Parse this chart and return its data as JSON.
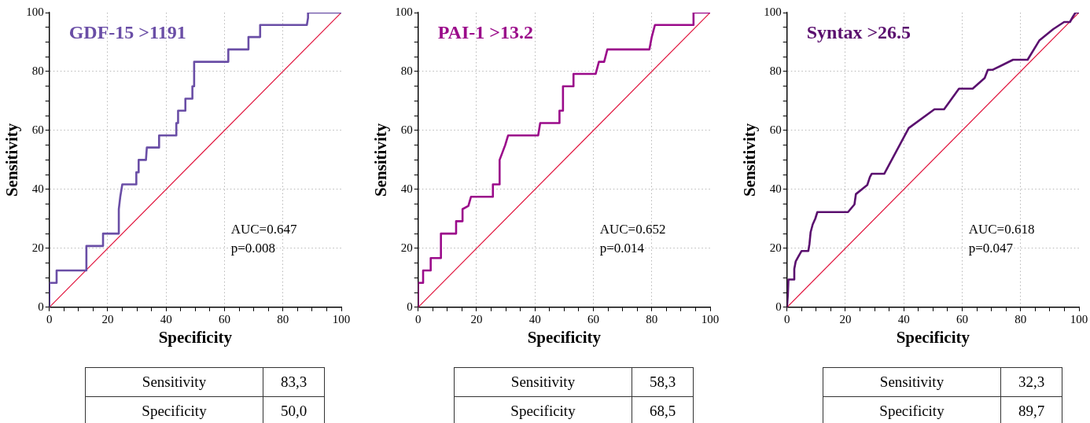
{
  "chart_data": [
    {
      "type": "line",
      "title": "GDF-15 >1191",
      "xlabel": "Specificity",
      "ylabel": "Sensitivity",
      "xlim": [
        0,
        100
      ],
      "ylim": [
        0,
        100
      ],
      "xticks": [
        0,
        {
          "value": 5,
          "label": null
        },
        {
          "value": 10,
          "label": null
        },
        {
          "value": 15,
          "label": null
        },
        20,
        {
          "value": 25,
          "label": null
        },
        {
          "value": 30,
          "label": null
        },
        {
          "value": 35,
          "label": null
        },
        40,
        {
          "value": 45,
          "label": null
        },
        {
          "value": 50,
          "label": null
        },
        {
          "value": 55,
          "label": null
        },
        60,
        {
          "value": 65,
          "label": null
        },
        {
          "value": 70,
          "label": null
        },
        {
          "value": 75,
          "label": null
        },
        80,
        {
          "value": 85,
          "label": null
        },
        {
          "value": 90,
          "label": null
        },
        {
          "value": 95,
          "label": null
        },
        100
      ],
      "yticks": [
        0,
        {
          "value": 5,
          "label": null
        },
        {
          "value": 10,
          "label": null
        },
        {
          "value": 15,
          "label": null
        },
        20,
        {
          "value": 25,
          "label": null
        },
        {
          "value": 30,
          "label": null
        },
        {
          "value": 35,
          "label": null
        },
        40,
        {
          "value": 45,
          "label": null
        },
        {
          "value": 50,
          "label": null
        },
        {
          "value": 55,
          "label": null
        },
        60,
        {
          "value": 65,
          "label": null
        },
        {
          "value": 70,
          "label": null
        },
        {
          "value": 75,
          "label": null
        },
        80,
        {
          "value": 85,
          "label": null
        },
        {
          "value": 90,
          "label": null
        },
        {
          "value": 95,
          "label": null
        },
        100
      ],
      "grid": true,
      "marker": "none",
      "series": [
        {
          "color": "#6a4ea6",
          "x": [
            0,
            0,
            2.5,
            2.5,
            12.7,
            12.7,
            18.4,
            18.4,
            23.8,
            23.8,
            24.3,
            25.0,
            29.8,
            29.8,
            30.6,
            30.6,
            33.1,
            33.4,
            37.6,
            37.6,
            43.5,
            43.5,
            44.1,
            44.1,
            46.6,
            46.6,
            49.0,
            49.0,
            49.6,
            49.6,
            61.3,
            61.3,
            68.2,
            68.2,
            72.2,
            72.2,
            88.2,
            88.6,
            88.6,
            100
          ],
          "values": [
            0,
            8.3,
            8.3,
            12.5,
            12.5,
            20.8,
            20.8,
            25.0,
            25.0,
            33.3,
            37.5,
            41.7,
            41.7,
            45.8,
            45.8,
            50.0,
            50.0,
            54.2,
            54.2,
            58.3,
            58.3,
            62.5,
            62.5,
            66.7,
            66.7,
            70.8,
            70.8,
            75.0,
            75.0,
            83.3,
            83.3,
            87.5,
            87.5,
            91.7,
            91.7,
            95.8,
            95.8,
            98.2,
            100,
            100
          ]
        },
        {
          "color": "#e0103a",
          "x": [
            0,
            100
          ],
          "values": [
            0,
            100
          ]
        }
      ],
      "annotations": [
        "AUC=0.647",
        "p=0.008",
        "Sensitivity",
        "83,3",
        "Specificity",
        "50,0"
      ]
    },
    {
      "type": "line",
      "title": "PAI-1 >13.2",
      "xlabel": "Specificity",
      "ylabel": "Sensitivity",
      "xlim": [
        0,
        100
      ],
      "ylim": [
        0,
        100
      ],
      "xticks": [
        0,
        {
          "value": 5,
          "label": null
        },
        {
          "value": 10,
          "label": null
        },
        {
          "value": 15,
          "label": null
        },
        20,
        {
          "value": 25,
          "label": null
        },
        {
          "value": 30,
          "label": null
        },
        {
          "value": 35,
          "label": null
        },
        40,
        {
          "value": 45,
          "label": null
        },
        {
          "value": 50,
          "label": null
        },
        {
          "value": 55,
          "label": null
        },
        60,
        {
          "value": 65,
          "label": null
        },
        {
          "value": 70,
          "label": null
        },
        {
          "value": 75,
          "label": null
        },
        80,
        {
          "value": 85,
          "label": null
        },
        {
          "value": 90,
          "label": null
        },
        {
          "value": 95,
          "label": null
        },
        100
      ],
      "yticks": [
        0,
        {
          "value": 5,
          "label": null
        },
        {
          "value": 10,
          "label": null
        },
        {
          "value": 15,
          "label": null
        },
        20,
        {
          "value": 25,
          "label": null
        },
        {
          "value": 30,
          "label": null
        },
        {
          "value": 35,
          "label": null
        },
        40,
        {
          "value": 45,
          "label": null
        },
        {
          "value": 50,
          "label": null
        },
        {
          "value": 55,
          "label": null
        },
        60,
        {
          "value": 65,
          "label": null
        },
        {
          "value": 70,
          "label": null
        },
        {
          "value": 75,
          "label": null
        },
        80,
        {
          "value": 85,
          "label": null
        },
        {
          "value": 90,
          "label": null
        },
        {
          "value": 95,
          "label": null
        },
        100
      ],
      "grid": true,
      "marker": "none",
      "series": [
        {
          "color": "#9b0a8a",
          "x": [
            0,
            0,
            1.7,
            1.7,
            4.3,
            4.3,
            7.8,
            7.8,
            13.0,
            13.0,
            15.2,
            15.2,
            17.2,
            18.1,
            25.6,
            25.6,
            27.9,
            27.9,
            29.8,
            30.8,
            41.1,
            41.8,
            48.4,
            48.4,
            49.6,
            49.6,
            53.2,
            53.2,
            60.8,
            61.9,
            63.7,
            64.8,
            79.2,
            80.0,
            81.1,
            94.3,
            94.3,
            100
          ],
          "values": [
            0,
            8.3,
            8.3,
            12.5,
            12.5,
            16.7,
            16.7,
            25.0,
            25.0,
            29.2,
            29.2,
            33.3,
            34.4,
            37.5,
            37.5,
            41.7,
            41.7,
            50.0,
            55.0,
            58.3,
            58.3,
            62.5,
            62.5,
            66.7,
            66.7,
            75.0,
            75.0,
            79.2,
            79.2,
            83.3,
            83.3,
            87.5,
            87.5,
            91.7,
            95.8,
            95.8,
            100,
            100
          ]
        },
        {
          "color": "#e0103a",
          "x": [
            0,
            100
          ],
          "values": [
            0,
            100
          ]
        }
      ],
      "annotations": [
        "AUC=0.652",
        "p=0.014",
        "Sensitivity",
        "58,3",
        "Specificity",
        "68,5"
      ]
    },
    {
      "type": "line",
      "title": "Syntax >26.5",
      "xlabel": "Specificity",
      "ylabel": "Sensitivity",
      "xlim": [
        0,
        100
      ],
      "ylim": [
        0,
        100
      ],
      "xticks": [
        0,
        {
          "value": 5,
          "label": null
        },
        {
          "value": 10,
          "label": null
        },
        {
          "value": 15,
          "label": null
        },
        20,
        {
          "value": 25,
          "label": null
        },
        {
          "value": 30,
          "label": null
        },
        {
          "value": 35,
          "label": null
        },
        40,
        {
          "value": 45,
          "label": null
        },
        {
          "value": 50,
          "label": null
        },
        {
          "value": 55,
          "label": null
        },
        60,
        {
          "value": 65,
          "label": null
        },
        {
          "value": 70,
          "label": null
        },
        {
          "value": 75,
          "label": null
        },
        80,
        {
          "value": 85,
          "label": null
        },
        {
          "value": 90,
          "label": null
        },
        {
          "value": 95,
          "label": null
        },
        100
      ],
      "yticks": [
        0,
        {
          "value": 5,
          "label": null
        },
        {
          "value": 10,
          "label": null
        },
        {
          "value": 15,
          "label": null
        },
        20,
        {
          "value": 25,
          "label": null
        },
        {
          "value": 30,
          "label": null
        },
        {
          "value": 35,
          "label": null
        },
        40,
        {
          "value": 45,
          "label": null
        },
        {
          "value": 50,
          "label": null
        },
        {
          "value": 55,
          "label": null
        },
        60,
        {
          "value": 65,
          "label": null
        },
        {
          "value": 70,
          "label": null
        },
        {
          "value": 75,
          "label": null
        },
        80,
        {
          "value": 85,
          "label": null
        },
        {
          "value": 90,
          "label": null
        },
        {
          "value": 95,
          "label": null
        },
        100
      ],
      "grid": true,
      "marker": "none",
      "series": [
        {
          "color": "#5a0f6e",
          "x": [
            0,
            0.3,
            0.5,
            2.3,
            2.5,
            3.0,
            4.0,
            5.0,
            7.3,
            7.7,
            8.1,
            8.8,
            9.7,
            10.4,
            20.9,
            23.1,
            23.6,
            27.5,
            28.4,
            29.0,
            33.3,
            41.7,
            50.5,
            53.8,
            58.9,
            63.6,
            67.7,
            68.8,
            70.5,
            77.4,
            82.4,
            86.4,
            91.2,
            94.9,
            96.9,
            97.8,
            98.8,
            100
          ],
          "values": [
            0,
            4.2,
            9.4,
            9.4,
            13.0,
            15.6,
            17.4,
            19.1,
            19.1,
            21.5,
            25.5,
            28.1,
            30.1,
            32.3,
            32.3,
            34.9,
            38.4,
            41.5,
            44.2,
            45.3,
            45.3,
            60.8,
            67.2,
            67.2,
            74.2,
            74.2,
            77.8,
            80.6,
            80.6,
            84.0,
            84.0,
            90.5,
            94.4,
            96.8,
            96.8,
            98.4,
            100,
            100
          ]
        },
        {
          "color": "#e0103a",
          "x": [
            0,
            100
          ],
          "values": [
            0,
            100
          ]
        }
      ],
      "annotations": [
        "AUC=0.618",
        "p=0.047",
        "Sensitivity",
        "32,3",
        "Specificity",
        "89,7"
      ]
    }
  ]
}
